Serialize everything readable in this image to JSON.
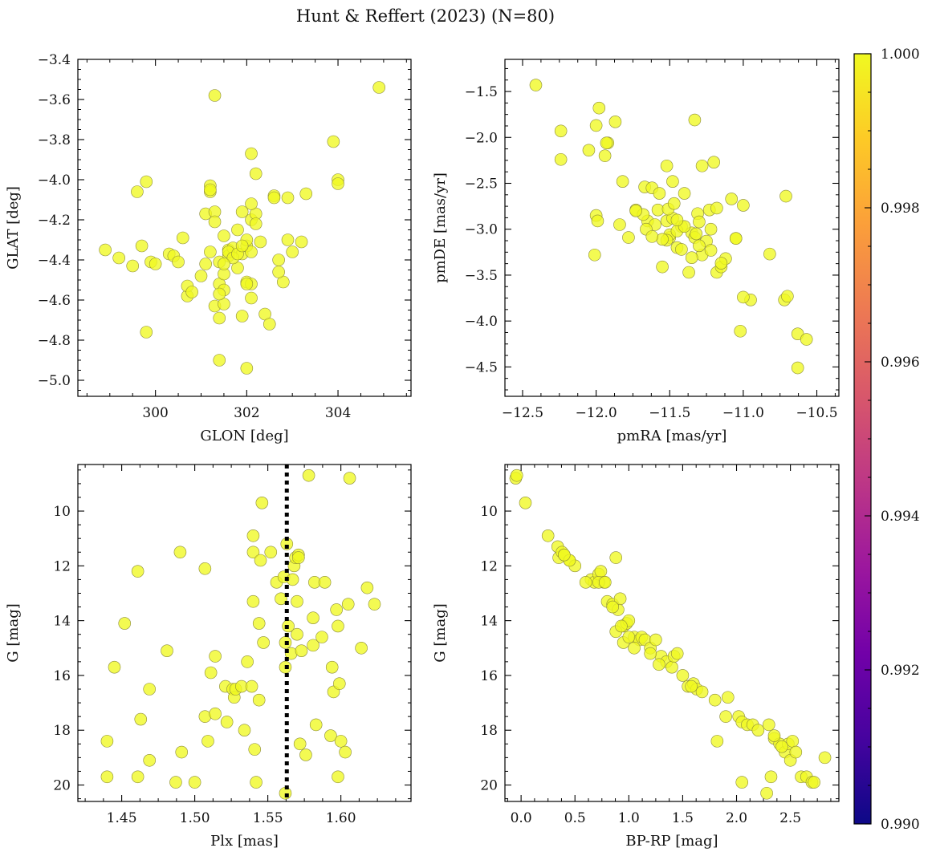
{
  "title": "Hunt & Reffert (2023) (N=80)",
  "colors": {
    "marker_fill": "#f0f921",
    "marker_edge": "#8a8a3a",
    "refline": "#000000",
    "colormap": [
      "#0d0887",
      "#46039f",
      "#7201a8",
      "#9c179e",
      "#bd3786",
      "#d8576b",
      "#ed7953",
      "#fb9f3a",
      "#fdca26",
      "#f0f921"
    ]
  },
  "colorbar": {
    "range": [
      0.99,
      1.0
    ],
    "ticks": [
      "0.990",
      "0.992",
      "0.994",
      "0.996",
      "0.998",
      "1.000"
    ]
  },
  "chart_data": [
    {
      "id": "glon-glat",
      "type": "scatter",
      "xlabel": "GLON [deg]",
      "ylabel": "GLAT [deg]",
      "xlim": [
        298.3,
        305.6
      ],
      "ylim": [
        -5.08,
        -3.4
      ],
      "xticks": [
        300,
        302,
        304
      ],
      "yticks": [
        -5.0,
        -4.8,
        -4.6,
        -4.4,
        -4.2,
        -4.0,
        -3.8,
        -3.6,
        -3.4
      ],
      "tick_decimals_y": 1,
      "x": [
        298.9,
        299.2,
        299.5,
        299.6,
        299.7,
        299.8,
        299.8,
        299.9,
        300.0,
        300.3,
        300.4,
        300.5,
        300.6,
        300.7,
        300.7,
        300.8,
        301.0,
        301.1,
        301.1,
        301.2,
        301.2,
        301.2,
        301.3,
        301.3,
        301.3,
        301.4,
        301.4,
        301.4,
        301.5,
        301.5,
        301.5,
        301.6,
        301.6,
        301.7,
        301.8,
        301.8,
        301.9,
        301.9,
        301.9,
        302.0,
        302.0,
        302.0,
        302.1,
        302.1,
        302.1,
        302.1,
        302.1,
        302.2,
        302.2,
        302.2,
        302.3,
        302.4,
        302.5,
        302.6,
        302.7,
        302.8,
        302.9,
        302.9,
        303.0,
        303.2,
        303.3,
        303.9,
        304.0,
        304.0,
        304.9,
        301.4,
        301.5,
        301.6,
        301.7,
        301.8,
        302.0,
        301.2,
        301.3,
        301.9,
        302.6,
        302.7,
        301.4,
        301.5,
        302.0,
        302.1
      ],
      "y": [
        -4.35,
        -4.39,
        -4.43,
        -4.06,
        -4.33,
        -4.76,
        -4.01,
        -4.41,
        -4.42,
        -4.37,
        -4.38,
        -4.41,
        -4.29,
        -4.58,
        -4.53,
        -4.56,
        -4.48,
        -4.42,
        -4.17,
        -4.03,
        -4.06,
        -4.36,
        -4.16,
        -4.63,
        -3.58,
        -4.52,
        -4.69,
        -4.9,
        -4.28,
        -4.47,
        -4.62,
        -4.35,
        -4.38,
        -4.34,
        -4.44,
        -4.25,
        -4.68,
        -4.37,
        -4.16,
        -4.33,
        -4.51,
        -4.94,
        -4.59,
        -3.87,
        -4.2,
        -4.52,
        -4.36,
        -4.17,
        -4.22,
        -3.97,
        -4.31,
        -4.67,
        -4.72,
        -4.08,
        -4.4,
        -4.51,
        -4.3,
        -4.09,
        -4.36,
        -4.31,
        -4.07,
        -3.81,
        -4.0,
        -4.02,
        -3.54,
        -4.41,
        -4.55,
        -4.36,
        -4.39,
        -4.37,
        -4.3,
        -4.05,
        -4.21,
        -4.33,
        -4.09,
        -4.46,
        -4.57,
        -4.42,
        -4.52,
        -4.12
      ]
    },
    {
      "id": "pmra-pmde",
      "type": "scatter",
      "xlabel": "pmRA [mas/yr]",
      "ylabel": "pmDE [mas/yr]",
      "xlim": [
        -12.62,
        -10.35
      ],
      "ylim": [
        -4.82,
        -1.15
      ],
      "xticks": [
        -12.5,
        -12.0,
        -11.5,
        -11.0,
        -10.5
      ],
      "yticks": [
        -4.5,
        -4.0,
        -3.5,
        -3.0,
        -2.5,
        -2.0,
        -1.5
      ],
      "tick_decimals_x": 1,
      "tick_decimals_y": 1,
      "x": [
        -12.41,
        -12.24,
        -12.24,
        -12.05,
        -12.0,
        -11.98,
        -11.94,
        -11.92,
        -11.93,
        -11.87,
        -11.84,
        -11.82,
        -11.78,
        -11.73,
        -11.67,
        -11.65,
        -11.62,
        -11.58,
        -11.55,
        -11.52,
        -11.5,
        -11.48,
        -11.45,
        -11.42,
        -11.4,
        -11.37,
        -11.35,
        -11.33,
        -11.31,
        -11.28,
        -11.25,
        -11.23,
        -11.2,
        -11.18,
        -11.15,
        -11.12,
        -11.08,
        -11.05,
        -11.02,
        -11.0,
        -10.95,
        -10.82,
        -10.72,
        -10.71,
        -10.7,
        -10.63,
        -10.63,
        -10.57,
        -12.01,
        -12.0,
        -11.99,
        -11.68,
        -11.6,
        -11.57,
        -11.52,
        -11.5,
        -11.48,
        -11.45,
        -11.4,
        -11.33,
        -11.3,
        -11.28,
        -11.22,
        -11.18,
        -11.15,
        -11.05,
        -11.0,
        -11.3,
        -11.52,
        -11.66,
        -11.73,
        -11.51,
        -11.45,
        -11.32,
        -11.22,
        -11.55,
        -11.35,
        -11.42,
        -11.62,
        -11.47
      ],
      "y": [
        -1.43,
        -1.93,
        -2.24,
        -2.14,
        -1.87,
        -1.68,
        -2.2,
        -2.06,
        -2.06,
        -1.83,
        -2.95,
        -2.48,
        -3.09,
        -2.79,
        -2.54,
        -2.91,
        -2.55,
        -2.79,
        -3.41,
        -2.31,
        -3.09,
        -2.48,
        -3.2,
        -2.97,
        -2.61,
        -3.47,
        -3.04,
        -1.81,
        -2.83,
        -2.31,
        -3.13,
        -2.79,
        -2.27,
        -3.47,
        -3.41,
        -3.32,
        -2.67,
        -3.1,
        -4.11,
        -2.74,
        -3.77,
        -3.27,
        -3.77,
        -2.64,
        -3.73,
        -4.14,
        -4.51,
        -4.2,
        -3.28,
        -2.85,
        -2.91,
        -2.84,
        -2.95,
        -2.61,
        -2.91,
        -3.06,
        -2.88,
        -3.02,
        -2.97,
        -3.09,
        -2.92,
        -3.28,
        -3.0,
        -2.77,
        -3.37,
        -3.1,
        -3.74,
        -3.18,
        -3.12,
        -3.0,
        -2.8,
        -2.78,
        -2.9,
        -3.05,
        -3.23,
        -3.11,
        -3.31,
        -3.22,
        -3.08,
        -2.72
      ]
    },
    {
      "id": "plx-g",
      "type": "scatter",
      "xlabel": "Plx [mas]",
      "ylabel": "G [mag]",
      "xlim": [
        1.42,
        1.648
      ],
      "ylim": [
        20.6,
        8.3
      ],
      "y_inverted": true,
      "xticks": [
        1.45,
        1.5,
        1.55,
        1.6
      ],
      "yticks": [
        10,
        12,
        14,
        16,
        18,
        20
      ],
      "tick_decimals_x": 2,
      "reference_line": {
        "x": 1.563,
        "style": "dotted"
      },
      "x": [
        1.44,
        1.44,
        1.445,
        1.452,
        1.461,
        1.461,
        1.463,
        1.469,
        1.469,
        1.481,
        1.487,
        1.49,
        1.491,
        1.5,
        1.507,
        1.507,
        1.509,
        1.511,
        1.514,
        1.514,
        1.521,
        1.522,
        1.526,
        1.527,
        1.528,
        1.532,
        1.534,
        1.536,
        1.539,
        1.54,
        1.54,
        1.54,
        1.541,
        1.542,
        1.544,
        1.544,
        1.545,
        1.546,
        1.547,
        1.552,
        1.556,
        1.559,
        1.561,
        1.562,
        1.562,
        1.562,
        1.563,
        1.564,
        1.566,
        1.567,
        1.568,
        1.569,
        1.57,
        1.57,
        1.571,
        1.571,
        1.572,
        1.573,
        1.576,
        1.578,
        1.581,
        1.581,
        1.582,
        1.583,
        1.587,
        1.589,
        1.593,
        1.594,
        1.595,
        1.597,
        1.598,
        1.598,
        1.599,
        1.6,
        1.603,
        1.605,
        1.606,
        1.614,
        1.618,
        1.623
      ],
      "y": [
        19.7,
        18.4,
        15.7,
        14.1,
        12.2,
        19.7,
        17.6,
        16.5,
        19.1,
        15.1,
        19.9,
        11.5,
        18.8,
        19.9,
        12.1,
        17.5,
        18.4,
        15.9,
        15.3,
        17.4,
        16.4,
        17.7,
        16.5,
        16.8,
        16.5,
        16.4,
        18.0,
        15.5,
        16.4,
        11.5,
        10.9,
        13.3,
        18.7,
        19.9,
        14.1,
        16.9,
        11.8,
        9.7,
        14.8,
        11.5,
        12.6,
        13.2,
        12.4,
        14.8,
        15.7,
        20.3,
        11.2,
        14.2,
        15.2,
        12.5,
        12.0,
        11.7,
        13.3,
        14.5,
        11.6,
        11.7,
        18.5,
        15.1,
        18.9,
        8.7,
        14.9,
        13.9,
        12.6,
        17.8,
        14.6,
        12.6,
        18.2,
        15.7,
        16.6,
        13.6,
        19.7,
        14.2,
        16.3,
        18.4,
        18.8,
        13.4,
        8.8,
        15.0,
        12.8,
        13.4
      ]
    },
    {
      "id": "bprp-g",
      "type": "scatter",
      "xlabel": "BP-RP [mag]",
      "ylabel": "G [mag]",
      "xlim": [
        -0.15,
        2.95
      ],
      "ylim": [
        20.6,
        8.3
      ],
      "y_inverted": true,
      "xticks": [
        0.0,
        0.5,
        1.0,
        1.5,
        2.0,
        2.5
      ],
      "yticks": [
        10,
        12,
        14,
        16,
        18,
        20
      ],
      "tick_decimals_x": 1,
      "x": [
        -0.05,
        -0.04,
        0.04,
        0.25,
        0.34,
        0.35,
        0.38,
        0.4,
        0.45,
        0.5,
        0.65,
        0.68,
        0.72,
        0.74,
        0.77,
        0.8,
        0.85,
        0.88,
        0.9,
        0.92,
        0.95,
        0.98,
        1.0,
        1.05,
        1.1,
        1.12,
        1.15,
        1.2,
        1.25,
        1.3,
        1.35,
        1.4,
        1.42,
        1.45,
        1.55,
        1.6,
        1.63,
        1.68,
        1.8,
        1.82,
        1.9,
        1.92,
        2.02,
        2.05,
        2.1,
        2.15,
        2.2,
        2.3,
        2.32,
        2.35,
        2.4,
        2.45,
        2.48,
        2.5,
        2.52,
        2.55,
        2.6,
        2.65,
        2.7,
        2.72,
        2.82,
        2.35,
        2.28,
        2.05,
        0.95,
        0.88,
        0.72,
        0.93,
        1.2,
        1.5,
        1.58,
        0.6,
        0.45,
        0.78,
        1.05,
        1.28,
        1.0,
        0.4,
        0.85,
        2.42
      ],
      "y": [
        8.8,
        8.7,
        9.7,
        10.9,
        11.3,
        11.7,
        11.5,
        11.6,
        11.8,
        12.0,
        12.5,
        12.6,
        12.3,
        12.2,
        12.6,
        13.3,
        13.4,
        11.7,
        13.6,
        13.2,
        14.2,
        14.1,
        14.0,
        14.6,
        14.7,
        14.6,
        14.7,
        15.0,
        14.7,
        15.3,
        15.5,
        15.7,
        15.3,
        15.2,
        16.4,
        16.3,
        16.5,
        16.6,
        16.9,
        18.4,
        17.5,
        16.8,
        17.5,
        17.7,
        17.8,
        17.8,
        18.0,
        17.8,
        19.7,
        18.3,
        18.5,
        18.8,
        18.5,
        19.1,
        18.4,
        18.8,
        19.7,
        19.7,
        19.9,
        19.9,
        19.0,
        18.2,
        20.3,
        19.9,
        14.8,
        14.4,
        12.6,
        14.2,
        15.2,
        16.0,
        16.4,
        12.6,
        11.8,
        12.6,
        15.0,
        15.6,
        14.6,
        11.6,
        13.5,
        18.6
      ]
    }
  ]
}
